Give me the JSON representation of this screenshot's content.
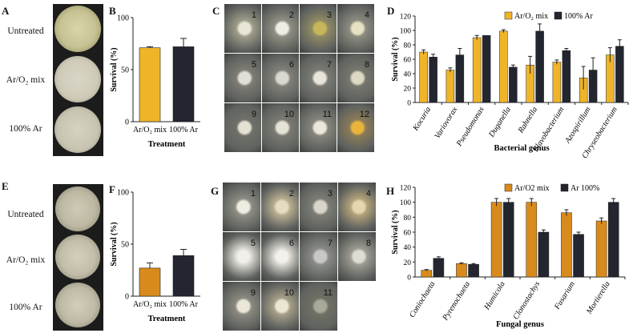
{
  "panels": {
    "A": {
      "label": "A",
      "rows": [
        "Untreated",
        "Ar/O₂ mix",
        "100% Ar"
      ]
    },
    "B": {
      "label": "B",
      "chart_data": {
        "type": "bar",
        "categories": [
          "Ar/O₂ mix",
          "100% Ar"
        ],
        "values": [
          71,
          72
        ],
        "errors": [
          1,
          8
        ],
        "colors": [
          "#f0b429",
          "#23252f"
        ],
        "xlabel": "Treatment",
        "ylabel": "Survival (%)",
        "ylim": [
          0,
          100
        ],
        "yticks": [
          "0",
          "50",
          "100"
        ]
      }
    },
    "C": {
      "label": "C",
      "tile_numbers": [
        "1",
        "2",
        "3",
        "4",
        "5",
        "6",
        "7",
        "8",
        "9",
        "10",
        "11",
        "12"
      ]
    },
    "D": {
      "label": "D",
      "chart_data": {
        "type": "bar",
        "categories": [
          "Kocuria",
          "Variovorax",
          "Pseudomonas",
          "Duganella",
          "Rahnella",
          "Flavobacterium",
          "Azospirillum",
          "Chryseobacterium"
        ],
        "series": [
          {
            "name": "Ar/O₂ mix",
            "color": "#f0b429",
            "values": [
              70,
              45,
              90,
              99,
              52,
              56,
              34,
              66
            ],
            "errors": [
              3,
              3,
              3,
              2,
              12,
              3,
              16,
              10
            ]
          },
          {
            "name": "100% Ar",
            "color": "#23252f",
            "values": [
              63,
              66,
              93,
              49,
              99,
              72,
              45,
              78
            ],
            "errors": [
              4,
              9,
              0,
              3,
              10,
              3,
              17,
              9
            ]
          }
        ],
        "xlabel": "Bacterial genus",
        "ylabel": "Survival (%)",
        "ylim": [
          0,
          120
        ],
        "yticks": [
          "0",
          "20",
          "40",
          "60",
          "80",
          "100",
          "120"
        ]
      }
    },
    "E": {
      "label": "E",
      "rows": [
        "Untreated",
        "Ar/O₂ mix",
        "100% Ar"
      ]
    },
    "F": {
      "label": "F",
      "chart_data": {
        "type": "bar",
        "categories": [
          "Ar/O₂ mix",
          "100% Ar"
        ],
        "values": [
          27,
          39
        ],
        "errors": [
          5,
          6
        ],
        "colors": [
          "#d98a1c",
          "#23252f"
        ],
        "xlabel": "Treatment",
        "ylabel": "Survival (%)",
        "ylim": [
          0,
          100
        ],
        "yticks": [
          "0",
          "50",
          "100"
        ]
      }
    },
    "G": {
      "label": "G",
      "tile_numbers": [
        "1",
        "2",
        "3",
        "4",
        "5",
        "6",
        "7",
        "8",
        "9",
        "10",
        "11"
      ]
    },
    "H": {
      "label": "H",
      "chart_data": {
        "type": "bar",
        "categories": [
          "Coniochaeta",
          "Pyrenochaeta",
          "Humicola",
          "Clonostachys",
          "Fusarium",
          "Mortierella"
        ],
        "series": [
          {
            "name": "Ar/O2 mix",
            "color": "#d98a1c",
            "values": [
              9,
              18,
              100,
              100,
              86,
              75
            ],
            "errors": [
              1,
              1,
              5,
              5,
              4,
              4
            ]
          },
          {
            "name": "Ar 100%",
            "color": "#23252f",
            "values": [
              25,
              17,
              100,
              60,
              57,
              100
            ],
            "errors": [
              2,
              1,
              5,
              3,
              3,
              5
            ]
          }
        ],
        "xlabel": "Fungal genus",
        "ylabel": "Survival (%)",
        "ylim": [
          0,
          120
        ],
        "yticks": [
          "0",
          "20",
          "40",
          "60",
          "80",
          "100",
          "120"
        ]
      }
    }
  }
}
